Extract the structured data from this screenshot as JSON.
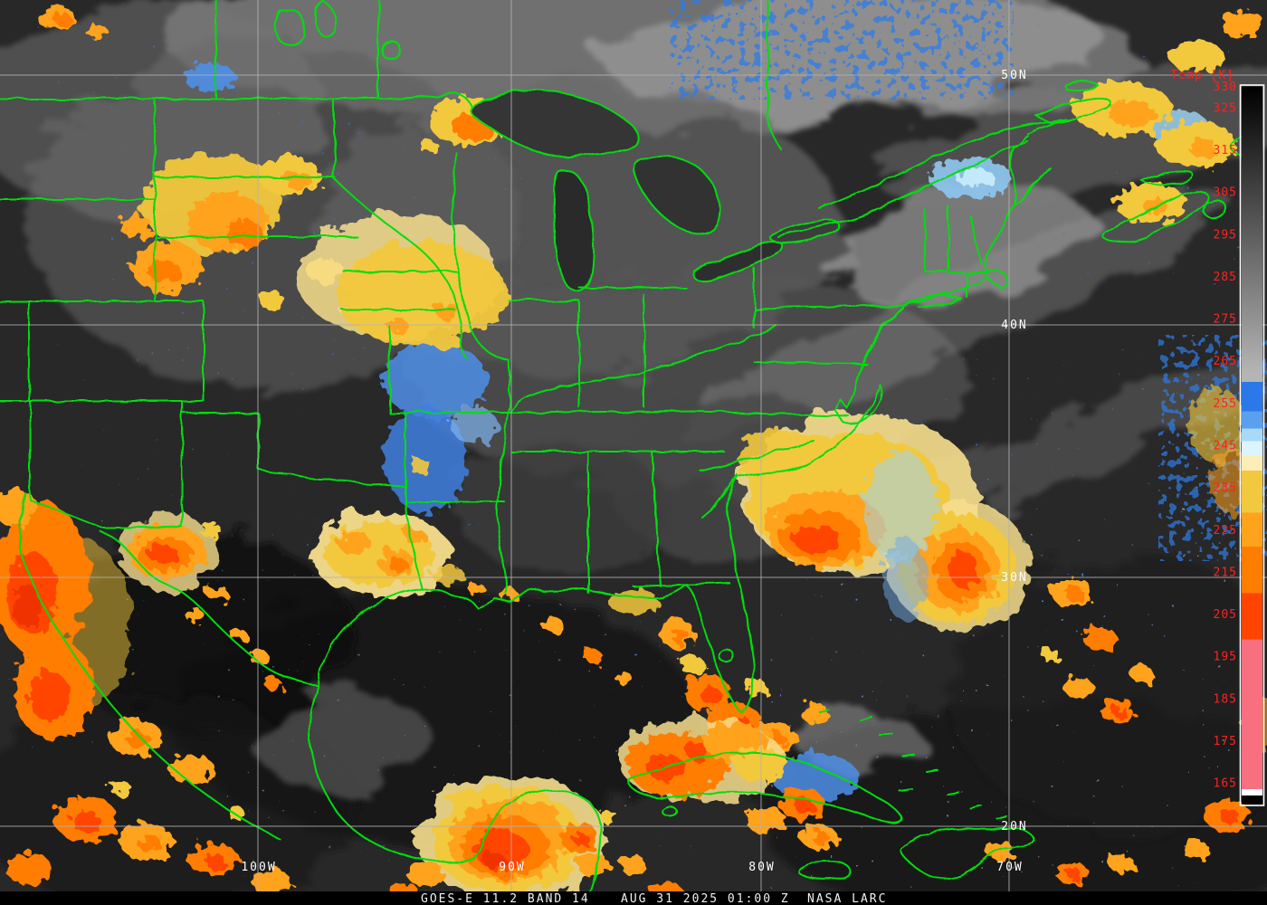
{
  "caption": {
    "product": "GOES-E 11.2 BAND 14",
    "datetime": "AUG 31 2025 01:00 Z",
    "credit": "NASA LARC"
  },
  "colorbar": {
    "title": "Temp [K]",
    "units": "K",
    "value_range": [
      330,
      160
    ],
    "tick_values": [
      330,
      325,
      315,
      305,
      295,
      285,
      275,
      265,
      255,
      245,
      235,
      225,
      215,
      205,
      195,
      185,
      175,
      165
    ],
    "label_color": "#ff2222",
    "stops": [
      {
        "value": 330,
        "color": "#000000"
      },
      {
        "value": 262,
        "color": "#b5b5b5"
      },
      {
        "value": 260,
        "color": "#2b78e8"
      },
      {
        "value": 253,
        "color": "#5aa0ee"
      },
      {
        "value": 249,
        "color": "#a8daf8"
      },
      {
        "value": 246,
        "color": "#dcf4fb"
      },
      {
        "value": 242.5,
        "color": "#fdeeb8"
      },
      {
        "value": 239,
        "color": "#f2c83e"
      },
      {
        "value": 229,
        "color": "#ffa21c"
      },
      {
        "value": 221,
        "color": "#ff7d00"
      },
      {
        "value": 210,
        "color": "#ff4400"
      },
      {
        "value": 199,
        "color": "#f8707f"
      },
      {
        "value": 163.5,
        "color": "#ffffff"
      },
      {
        "value": 162,
        "color": "#000000"
      }
    ]
  },
  "grid": {
    "lat_labels": [
      "50N",
      "40N",
      "30N",
      "20N"
    ],
    "lon_labels": [
      "100W",
      "90W",
      "80W",
      "70W"
    ],
    "line_color": "#b2b2b2",
    "label_color": "#ffffff"
  },
  "map": {
    "border_color": "#00dd11"
  }
}
